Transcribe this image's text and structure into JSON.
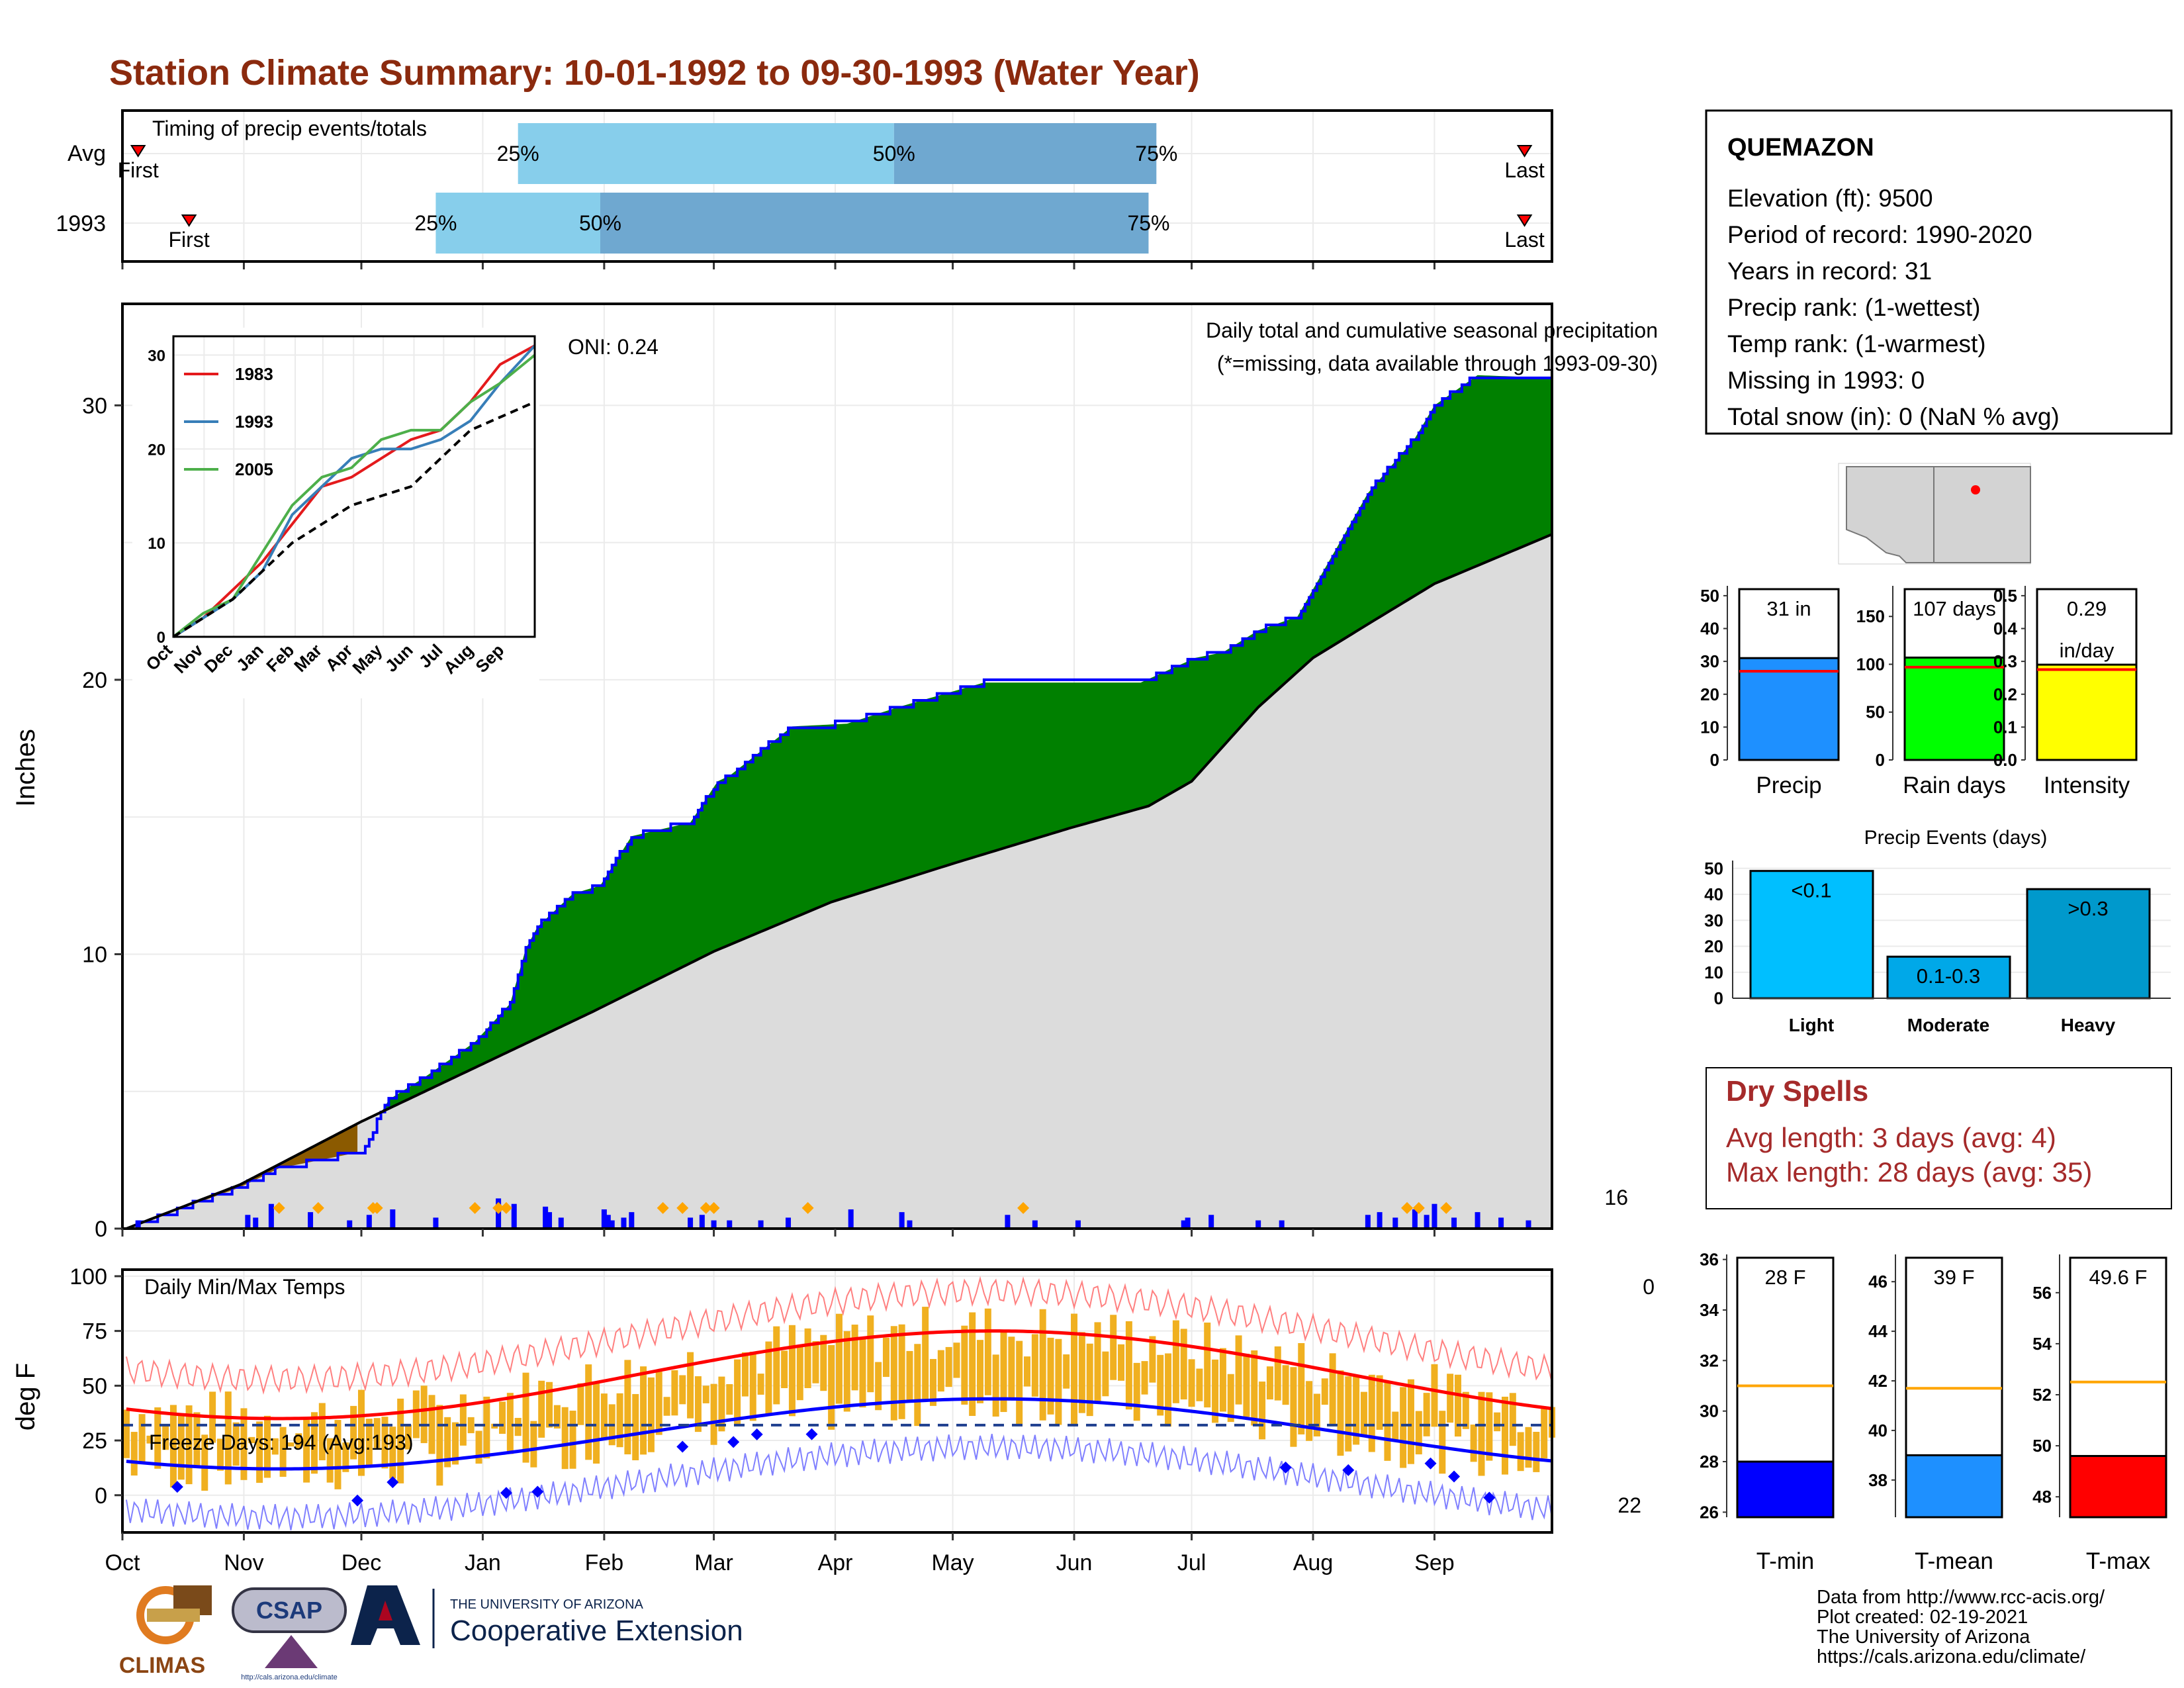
{
  "title": "Station Climate Summary: 10-01-1992 to 09-30-1993 (Water Year)",
  "colors": {
    "title": "#8b2a0e",
    "cumulative": "#008000",
    "average": "#dcdcdc",
    "deficit": "#8b5a00",
    "daily_bar": "#0000ff",
    "event_marker": "#ffa500",
    "temp_bar": "#f0b020",
    "tmax": "#ff0000",
    "tmin": "#0000ff",
    "dry_spells": "#a52a2a",
    "light_blue": "#87ceeb",
    "mid_blue": "#6fa8d0",
    "precip_bar": "#1e90ff",
    "raindays_bar": "#00ff00",
    "intensity_bar": "#ffff00",
    "event_light": "#00bfff",
    "event_moderate": "#00a8e8",
    "event_heavy": "#0099cc",
    "tmin_bar": "#0000ff",
    "tmean_bar": "#1e90ff",
    "tmax_bar": "#ff0000",
    "avg_line": "#ffa500"
  },
  "months": [
    "Oct",
    "Nov",
    "Dec",
    "Jan",
    "Feb",
    "Mar",
    "Apr",
    "May",
    "Jun",
    "Jul",
    "Aug",
    "Sep"
  ],
  "timing": {
    "label": "Timing of precip events/totals",
    "rows": [
      {
        "name": "Avg",
        "first": "First",
        "last": "Last",
        "first_day": 4,
        "p25": "25%",
        "p50": "50%",
        "p75": "75%",
        "p25_day": 101,
        "p50_day": 197,
        "p75_day": 264,
        "last_day": 358
      },
      {
        "name": "1993",
        "first": "First",
        "last": "Last",
        "first_day": 17,
        "p25": "25%",
        "p50": "50%",
        "p75": "75%",
        "p25_day": 80,
        "p50_day": 122,
        "p75_day": 262,
        "last_day": 358
      }
    ]
  },
  "precip": {
    "ylabel": "Inches",
    "yticks": [
      0,
      10,
      20,
      30
    ],
    "ylim": [
      0,
      33.7
    ],
    "caption1": "Daily total and cumulative seasonal precipitation",
    "caption2": "(*=missing, data available through 1993-09-30)",
    "oni": "ONI: 0.24",
    "count_label": "16"
  },
  "chart_data": {
    "type": "area",
    "title": "Daily total and cumulative seasonal precipitation",
    "ylabel": "Inches",
    "x_unit": "day of water year (1 = Oct 1)",
    "ylim": [
      0,
      33.7
    ],
    "series": [
      {
        "name": "1993",
        "x": [
          1,
          30,
          40,
          61,
          68,
          77,
          90,
          99,
          103,
          106,
          115,
          122,
          130,
          145,
          152,
          155,
          171,
          185,
          198,
          220,
          240,
          260,
          274,
          281,
          290,
          300,
          318,
          330,
          335,
          340,
          346,
          365
        ],
        "values": [
          0,
          1.5,
          2.2,
          2.8,
          4.7,
          5.5,
          6.8,
          8.2,
          10.2,
          11.0,
          12.2,
          12.5,
          14.3,
          14.8,
          16.3,
          16.5,
          18.3,
          18.4,
          19.0,
          19.9,
          19.9,
          19.9,
          20.8,
          21.0,
          21.8,
          22.3,
          26.8,
          28.8,
          30.0,
          30.5,
          31.1,
          31.0
        ]
      },
      {
        "name": "Avg",
        "x": [
          1,
          30,
          61,
          92,
          120,
          151,
          181,
          212,
          242,
          262,
          273,
          290,
          304,
          320,
          335,
          365
        ],
        "values": [
          0,
          1.6,
          3.9,
          6.0,
          7.9,
          10.1,
          11.9,
          13.3,
          14.6,
          15.4,
          16.3,
          19.0,
          20.8,
          22.2,
          23.5,
          25.3
        ]
      }
    ]
  },
  "inset": {
    "yticks": [
      0,
      10,
      20,
      30
    ],
    "months": [
      "Oct",
      "Nov",
      "Dec",
      "Jan",
      "Feb",
      "Mar",
      "Apr",
      "May",
      "Jun",
      "Jul",
      "Aug",
      "Sep"
    ],
    "series": [
      {
        "name": "1983",
        "color": "#e41a1c",
        "x": [
          0,
          30,
          60,
          90,
          120,
          150,
          180,
          210,
          240,
          270,
          300,
          330,
          365
        ],
        "values": [
          0,
          2,
          5,
          8,
          12,
          16,
          17,
          19,
          21,
          22,
          25,
          29,
          31
        ]
      },
      {
        "name": "1993",
        "color": "#377eb8",
        "x": [
          0,
          30,
          60,
          90,
          120,
          150,
          180,
          210,
          240,
          270,
          300,
          330,
          365
        ],
        "values": [
          0,
          2,
          4,
          7,
          13,
          16,
          19,
          20,
          20,
          21,
          23,
          27,
          31
        ]
      },
      {
        "name": "2005",
        "color": "#4daf4a",
        "x": [
          0,
          30,
          60,
          90,
          120,
          150,
          180,
          210,
          240,
          270,
          300,
          330,
          365
        ],
        "values": [
          0,
          2.5,
          4,
          9,
          14,
          17,
          18,
          21,
          22,
          22,
          25,
          27,
          30
        ]
      },
      {
        "name": "",
        "color": "#000",
        "x": [
          0,
          60,
          120,
          180,
          240,
          300,
          365
        ],
        "values": [
          0,
          4,
          10,
          14,
          16,
          22,
          25
        ]
      }
    ]
  },
  "temps": {
    "ylabel": "deg F",
    "yticks": [
      0,
      25,
      50,
      75,
      100
    ],
    "ylim": [
      -17,
      103
    ],
    "caption": "Daily Min/Max Temps",
    "freeze_label": "Freeze Days: 194 (Avg:193)",
    "top_count": "0",
    "bottom_count": "22",
    "freeze_line": 32
  },
  "station": {
    "name": "QUEMAZON",
    "lines": [
      "Elevation (ft): 9500",
      "Period of record: 1990-2020",
      "Years in record: 31",
      "Precip rank:  (1-wettest)",
      "Temp rank:  (1-warmest)",
      "Missing in 1993: 0",
      "Total snow (in): 0 (NaN % avg)"
    ]
  },
  "small_bars": [
    {
      "label": "Precip",
      "value_label": "31 in",
      "value": 31,
      "avg": 27,
      "ymax": 53,
      "yticks": [
        "0",
        "10",
        "20",
        "30",
        "40",
        "50"
      ],
      "tickvals": [
        0,
        10,
        20,
        30,
        40,
        50
      ]
    },
    {
      "label": "Rain days",
      "value_label": "107 days",
      "value": 107,
      "avg": 97,
      "ymax": 182,
      "yticks": [
        "0",
        "50",
        "100",
        "150"
      ],
      "tickvals": [
        0,
        50,
        100,
        150
      ]
    },
    {
      "label": "Intensity",
      "value_label": "0.29",
      "value_label2": "in/day",
      "value": 0.29,
      "avg": 0.275,
      "ymax": 0.53,
      "yticks": [
        "0.0",
        "0.1",
        "0.2",
        "0.3",
        "0.4",
        "0.5"
      ],
      "tickvals": [
        0,
        0.1,
        0.2,
        0.3,
        0.4,
        0.5
      ]
    }
  ],
  "events": {
    "title": "Precip Events (days)",
    "yticks": [
      0,
      10,
      20,
      30,
      40,
      50
    ],
    "categories": [
      "Light",
      "Moderate",
      "Heavy"
    ],
    "labels": [
      "<0.1",
      "0.1-0.3",
      ">0.3"
    ],
    "values": [
      49,
      16,
      42
    ]
  },
  "dry_spells": {
    "title": "Dry Spells",
    "avg": "Avg length: 3 days (avg: 4)",
    "max": "Max length: 28 days (avg: 35)"
  },
  "temp_bars": [
    {
      "label": "T-min",
      "value_label": "28 F",
      "value": 28,
      "avg": 31,
      "ymin": 25.8,
      "ymax": 36.2,
      "yticks": [
        "26",
        "28",
        "30",
        "32",
        "34",
        "36"
      ],
      "tickvals": [
        26,
        28,
        30,
        32,
        34,
        36
      ]
    },
    {
      "label": "T-mean",
      "value_label": "39 F",
      "value": 39,
      "avg": 41.7,
      "ymin": 36.5,
      "ymax": 47.1,
      "yticks": [
        "38",
        "40",
        "42",
        "44",
        "46"
      ],
      "tickvals": [
        38,
        40,
        42,
        44,
        46
      ]
    },
    {
      "label": "T-max",
      "value_label": "49.6 F",
      "value": 49.6,
      "avg": 52.5,
      "ymin": 47.2,
      "ymax": 57.5,
      "yticks": [
        "48",
        "50",
        "52",
        "54",
        "56"
      ],
      "tickvals": [
        48,
        50,
        52,
        54,
        56
      ]
    }
  ],
  "footer": {
    "lines": [
      "Data from http://www.rcc-acis.org/",
      "Plot created: 02-19-2021",
      "The University of Arizona",
      "https://cals.arizona.edu/climate/"
    ],
    "climas": "CLIMAS",
    "csap": "CSAP",
    "csap_url": "http://cals.arizona.edu/climate",
    "ua_small": "THE UNIVERSITY OF ARIZONA",
    "ua_big": "Cooperative Extension"
  }
}
